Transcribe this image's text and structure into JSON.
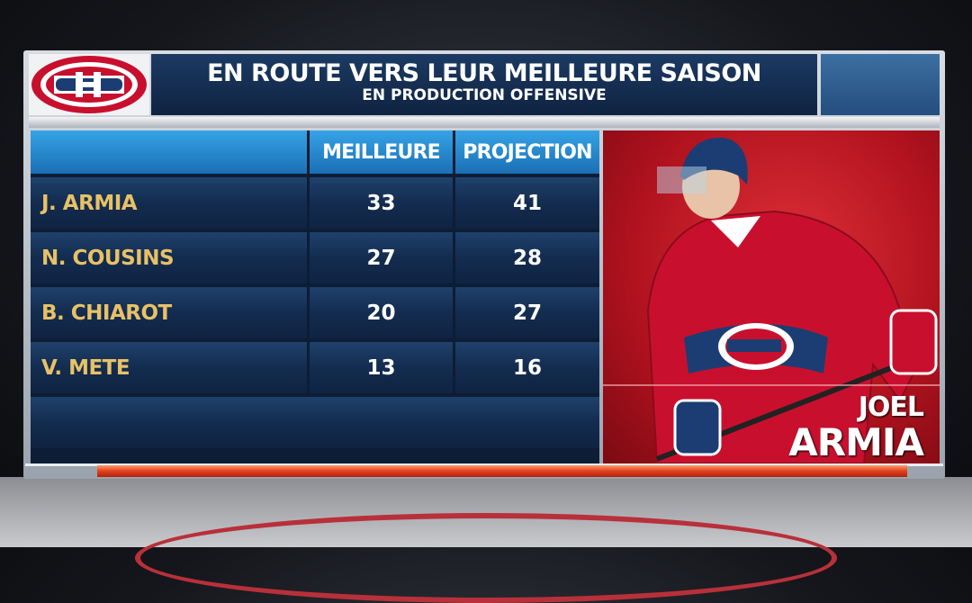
{
  "header": {
    "title": "EN ROUTE VERS LEUR MEILLEURE SAISON",
    "subtitle": "EN PRODUCTION OFFENSIVE"
  },
  "table": {
    "columns": [
      "MEILLEURE",
      "PROJECTION"
    ],
    "rows": [
      [
        "J. ARMIA",
        33,
        41
      ],
      [
        "N. COUSINS",
        27,
        28
      ],
      [
        "B. CHIAROT",
        20,
        27
      ],
      [
        "V. METE",
        13,
        16
      ]
    ]
  },
  "player": {
    "first_name": "JOEL",
    "last_name": "ARMIA"
  }
}
